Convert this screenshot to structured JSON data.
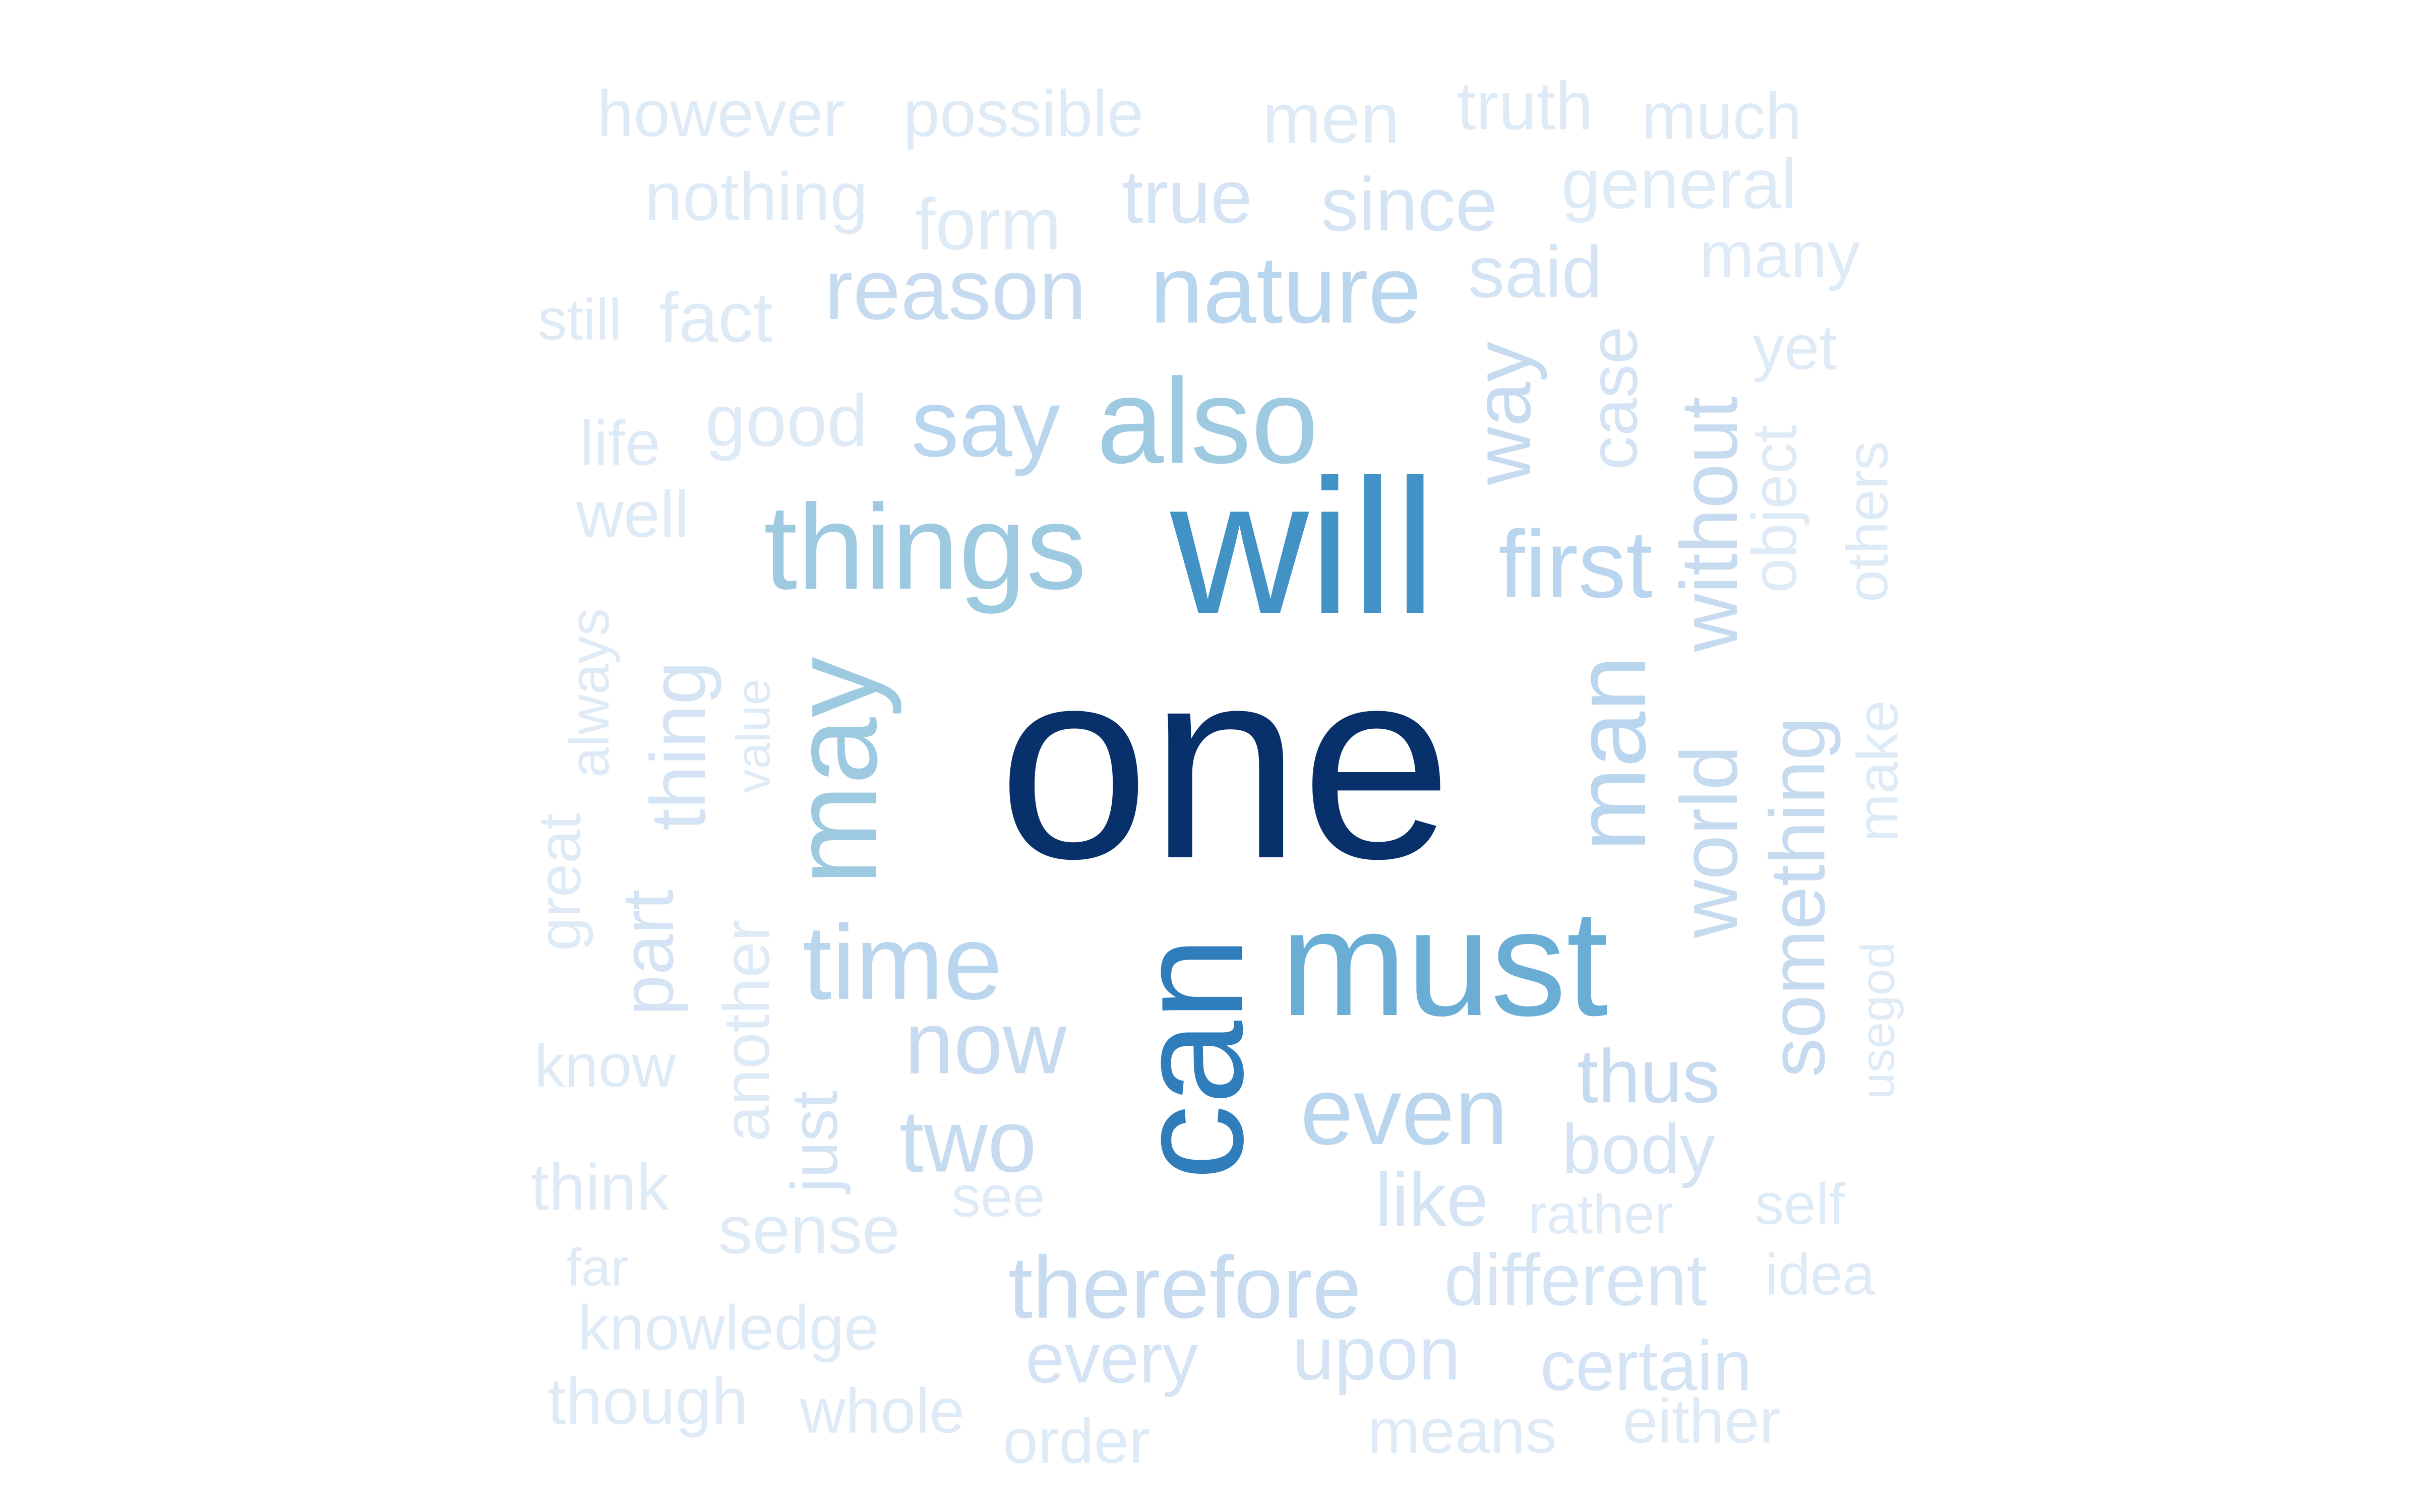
{
  "word_cloud": {
    "palette": {
      "c1": "#08306b",
      "c2": "#2f7dbb",
      "c3": "#4292c6",
      "c4": "#6aaed6",
      "c5": "#9ecae1",
      "c6": "#b9d6ee",
      "c7": "#c6dbef",
      "c8": "#d4e4f4",
      "c9": "#deebf7"
    },
    "words": [
      {
        "text": "one",
        "rank": 1
      },
      {
        "text": "will",
        "rank": 2
      },
      {
        "text": "can",
        "rank": 2
      },
      {
        "text": "must",
        "rank": 3
      },
      {
        "text": "things",
        "rank": 4
      },
      {
        "text": "also",
        "rank": 4
      },
      {
        "text": "may",
        "rank": 4
      },
      {
        "text": "time",
        "rank": 5
      },
      {
        "text": "say",
        "rank": 5
      },
      {
        "text": "nature",
        "rank": 5
      },
      {
        "text": "first",
        "rank": 5
      },
      {
        "text": "even",
        "rank": 5
      },
      {
        "text": "man",
        "rank": 5
      },
      {
        "text": "reason",
        "rank": 6
      },
      {
        "text": "way",
        "rank": 6
      },
      {
        "text": "now",
        "rank": 6
      },
      {
        "text": "two",
        "rank": 6
      },
      {
        "text": "therefore",
        "rank": 6
      },
      {
        "text": "without",
        "rank": 6
      },
      {
        "text": "world",
        "rank": 6
      },
      {
        "text": "something",
        "rank": 6
      },
      {
        "text": "thus",
        "rank": 6
      },
      {
        "text": "thing",
        "rank": 7
      },
      {
        "text": "body",
        "rank": 7
      },
      {
        "text": "case",
        "rank": 7
      },
      {
        "text": "like",
        "rank": 7
      },
      {
        "text": "since",
        "rank": 7
      },
      {
        "text": "true",
        "rank": 7
      },
      {
        "text": "said",
        "rank": 7
      },
      {
        "text": "upon",
        "rank": 7
      },
      {
        "text": "different",
        "rank": 7
      },
      {
        "text": "certain",
        "rank": 7
      },
      {
        "text": "part",
        "rank": 7
      },
      {
        "text": "just",
        "rank": 7
      },
      {
        "text": "every",
        "rank": 7
      },
      {
        "text": "however",
        "rank": 8
      },
      {
        "text": "possible",
        "rank": 8
      },
      {
        "text": "men",
        "rank": 8
      },
      {
        "text": "truth",
        "rank": 8
      },
      {
        "text": "much",
        "rank": 8
      },
      {
        "text": "nothing",
        "rank": 8
      },
      {
        "text": "form",
        "rank": 8
      },
      {
        "text": "general",
        "rank": 8
      },
      {
        "text": "many",
        "rank": 8
      },
      {
        "text": "still",
        "rank": 8
      },
      {
        "text": "fact",
        "rank": 8
      },
      {
        "text": "yet",
        "rank": 8
      },
      {
        "text": "life",
        "rank": 8
      },
      {
        "text": "good",
        "rank": 8
      },
      {
        "text": "object",
        "rank": 8
      },
      {
        "text": "others",
        "rank": 8
      },
      {
        "text": "well",
        "rank": 8
      },
      {
        "text": "always",
        "rank": 8
      },
      {
        "text": "value",
        "rank": 8
      },
      {
        "text": "great",
        "rank": 8
      },
      {
        "text": "make",
        "rank": 8
      },
      {
        "text": "another",
        "rank": 8
      },
      {
        "text": "know",
        "rank": 8
      },
      {
        "text": "usegod",
        "rank": 8
      },
      {
        "text": "see",
        "rank": 8
      },
      {
        "text": "think",
        "rank": 8
      },
      {
        "text": "sense",
        "rank": 8
      },
      {
        "text": "rather",
        "rank": 8
      },
      {
        "text": "self",
        "rank": 8
      },
      {
        "text": "far",
        "rank": 8
      },
      {
        "text": "idea",
        "rank": 8
      },
      {
        "text": "knowledge",
        "rank": 8
      },
      {
        "text": "though",
        "rank": 9
      },
      {
        "text": "whole",
        "rank": 9
      },
      {
        "text": "order",
        "rank": 9
      },
      {
        "text": "means",
        "rank": 9
      },
      {
        "text": "either",
        "rank": 9
      }
    ]
  }
}
